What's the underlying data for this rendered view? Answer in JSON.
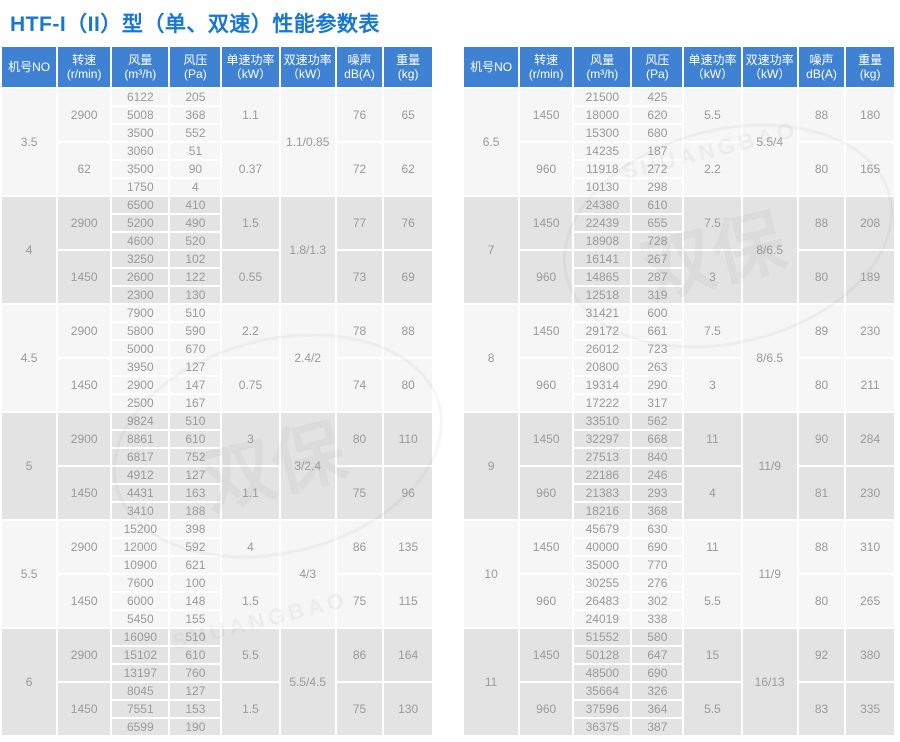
{
  "title": "HTF-I（II）型（单、双速）性能参数表",
  "colors": {
    "title_blue": "#1778d2",
    "header_blue": "#3f82d4",
    "band_light": "#f6f6f6",
    "band_dark": "#e3e3e3",
    "data_text": "#9a9a9a"
  },
  "watermark": {
    "text": "双保",
    "latin": "SHUANGBAO"
  },
  "columns": [
    {
      "l1": "机号NO",
      "l2": ""
    },
    {
      "l1": "转速",
      "l2": "(r/min)"
    },
    {
      "l1": "风量",
      "l2": "(m³/h)"
    },
    {
      "l1": "风压",
      "l2": "(Pa)"
    },
    {
      "l1": "单速功率",
      "l2": "（kW）"
    },
    {
      "l1": "双速功率",
      "l2": "（kW）"
    },
    {
      "l1": "噪声",
      "l2": "dB(A)"
    },
    {
      "l1": "重量",
      "l2": "(kg)"
    }
  ],
  "tables": [
    {
      "sections": [
        {
          "model": "3.5",
          "dual_power": "1.1/0.85",
          "groups": [
            {
              "speed": "2900",
              "rows": [
                [
                  "6122",
                  "205"
                ],
                [
                  "5008",
                  "368"
                ],
                [
                  "3500",
                  "552"
                ]
              ],
              "single_power": "1.1",
              "noise": "76",
              "weight": "65"
            },
            {
              "speed": "62",
              "rows": [
                [
                  "3060",
                  "51"
                ],
                [
                  "3500",
                  "90"
                ],
                [
                  "1750",
                  "4"
                ]
              ],
              "single_power": "0.37",
              "noise": "72",
              "weight": "62"
            }
          ]
        },
        {
          "model": "4",
          "dual_power": "1.8/1.3",
          "groups": [
            {
              "speed": "2900",
              "rows": [
                [
                  "6500",
                  "410"
                ],
                [
                  "5200",
                  "490"
                ],
                [
                  "4600",
                  "520"
                ]
              ],
              "single_power": "1.5",
              "noise": "77",
              "weight": "76"
            },
            {
              "speed": "1450",
              "rows": [
                [
                  "3250",
                  "102"
                ],
                [
                  "2600",
                  "122"
                ],
                [
                  "2300",
                  "130"
                ]
              ],
              "single_power": "0.55",
              "noise": "73",
              "weight": "69"
            }
          ]
        },
        {
          "model": "4.5",
          "dual_power": "2.4/2",
          "groups": [
            {
              "speed": "2900",
              "rows": [
                [
                  "7900",
                  "510"
                ],
                [
                  "5800",
                  "590"
                ],
                [
                  "5000",
                  "670"
                ]
              ],
              "single_power": "2.2",
              "noise": "78",
              "weight": "88"
            },
            {
              "speed": "1450",
              "rows": [
                [
                  "3950",
                  "127"
                ],
                [
                  "2900",
                  "147"
                ],
                [
                  "2500",
                  "167"
                ]
              ],
              "single_power": "0.75",
              "noise": "74",
              "weight": "80"
            }
          ]
        },
        {
          "model": "5",
          "dual_power": "3/2.4",
          "groups": [
            {
              "speed": "2900",
              "rows": [
                [
                  "9824",
                  "510"
                ],
                [
                  "8861",
                  "610"
                ],
                [
                  "6817",
                  "752"
                ]
              ],
              "single_power": "3",
              "noise": "80",
              "weight": "110"
            },
            {
              "speed": "1450",
              "rows": [
                [
                  "4912",
                  "127"
                ],
                [
                  "4431",
                  "163"
                ],
                [
                  "3410",
                  "188"
                ]
              ],
              "single_power": "1.1",
              "noise": "75",
              "weight": "96"
            }
          ]
        },
        {
          "model": "5.5",
          "dual_power": "4/3",
          "groups": [
            {
              "speed": "2900",
              "rows": [
                [
                  "15200",
                  "398"
                ],
                [
                  "12000",
                  "592"
                ],
                [
                  "10900",
                  "621"
                ]
              ],
              "single_power": "4",
              "noise": "86",
              "weight": "135"
            },
            {
              "speed": "1450",
              "rows": [
                [
                  "7600",
                  "100"
                ],
                [
                  "6000",
                  "148"
                ],
                [
                  "5450",
                  "155"
                ]
              ],
              "single_power": "1.5",
              "noise": "75",
              "weight": "115"
            }
          ]
        },
        {
          "model": "6",
          "dual_power": "5.5/4.5",
          "groups": [
            {
              "speed": "2900",
              "rows": [
                [
                  "16090",
                  "510"
                ],
                [
                  "15102",
                  "610"
                ],
                [
                  "13197",
                  "760"
                ]
              ],
              "single_power": "5.5",
              "noise": "86",
              "weight": "164"
            },
            {
              "speed": "1450",
              "rows": [
                [
                  "8045",
                  "127"
                ],
                [
                  "7551",
                  "153"
                ],
                [
                  "6599",
                  "190"
                ]
              ],
              "single_power": "1.5",
              "noise": "75",
              "weight": "130"
            }
          ]
        }
      ]
    },
    {
      "sections": [
        {
          "model": "6.5",
          "dual_power": "5.5/4",
          "groups": [
            {
              "speed": "1450",
              "rows": [
                [
                  "21500",
                  "425"
                ],
                [
                  "18000",
                  "620"
                ],
                [
                  "15300",
                  "680"
                ]
              ],
              "single_power": "5.5",
              "noise": "88",
              "weight": "180"
            },
            {
              "speed": "960",
              "rows": [
                [
                  "14235",
                  "187"
                ],
                [
                  "11918",
                  "272"
                ],
                [
                  "10130",
                  "298"
                ]
              ],
              "single_power": "2.2",
              "noise": "80",
              "weight": "165"
            }
          ]
        },
        {
          "model": "7",
          "dual_power": "8/6.5",
          "groups": [
            {
              "speed": "1450",
              "rows": [
                [
                  "24380",
                  "610"
                ],
                [
                  "22439",
                  "655"
                ],
                [
                  "18908",
                  "728"
                ]
              ],
              "single_power": "7.5",
              "noise": "88",
              "weight": "208"
            },
            {
              "speed": "960",
              "rows": [
                [
                  "16141",
                  "267"
                ],
                [
                  "14865",
                  "287"
                ],
                [
                  "12518",
                  "319"
                ]
              ],
              "single_power": "3",
              "noise": "80",
              "weight": "189"
            }
          ]
        },
        {
          "model": "8",
          "dual_power": "8/6.5",
          "groups": [
            {
              "speed": "1450",
              "rows": [
                [
                  "31421",
                  "600"
                ],
                [
                  "29172",
                  "661"
                ],
                [
                  "26012",
                  "723"
                ]
              ],
              "single_power": "7.5",
              "noise": "89",
              "weight": "230"
            },
            {
              "speed": "960",
              "rows": [
                [
                  "20800",
                  "263"
                ],
                [
                  "19314",
                  "290"
                ],
                [
                  "17222",
                  "317"
                ]
              ],
              "single_power": "3",
              "noise": "80",
              "weight": "211"
            }
          ]
        },
        {
          "model": "9",
          "dual_power": "11/9",
          "groups": [
            {
              "speed": "1450",
              "rows": [
                [
                  "33510",
                  "562"
                ],
                [
                  "32297",
                  "668"
                ],
                [
                  "27513",
                  "840"
                ]
              ],
              "single_power": "11",
              "noise": "90",
              "weight": "284"
            },
            {
              "speed": "960",
              "rows": [
                [
                  "22186",
                  "246"
                ],
                [
                  "21383",
                  "293"
                ],
                [
                  "18216",
                  "368"
                ]
              ],
              "single_power": "4",
              "noise": "81",
              "weight": "230"
            }
          ]
        },
        {
          "model": "10",
          "dual_power": "11/9",
          "groups": [
            {
              "speed": "1450",
              "rows": [
                [
                  "45679",
                  "630"
                ],
                [
                  "40000",
                  "690"
                ],
                [
                  "35000",
                  "770"
                ]
              ],
              "single_power": "11",
              "noise": "88",
              "weight": "310"
            },
            {
              "speed": "960",
              "rows": [
                [
                  "30255",
                  "276"
                ],
                [
                  "26483",
                  "302"
                ],
                [
                  "24019",
                  "338"
                ]
              ],
              "single_power": "5.5",
              "noise": "80",
              "weight": "265"
            }
          ]
        },
        {
          "model": "11",
          "dual_power": "16/13",
          "groups": [
            {
              "speed": "1450",
              "rows": [
                [
                  "51552",
                  "580"
                ],
                [
                  "50128",
                  "647"
                ],
                [
                  "48500",
                  "690"
                ]
              ],
              "single_power": "15",
              "noise": "92",
              "weight": "380"
            },
            {
              "speed": "960",
              "rows": [
                [
                  "35664",
                  "326"
                ],
                [
                  "37596",
                  "364"
                ],
                [
                  "36375",
                  "387"
                ]
              ],
              "single_power": "5.5",
              "noise": "83",
              "weight": "335"
            }
          ]
        }
      ]
    }
  ]
}
